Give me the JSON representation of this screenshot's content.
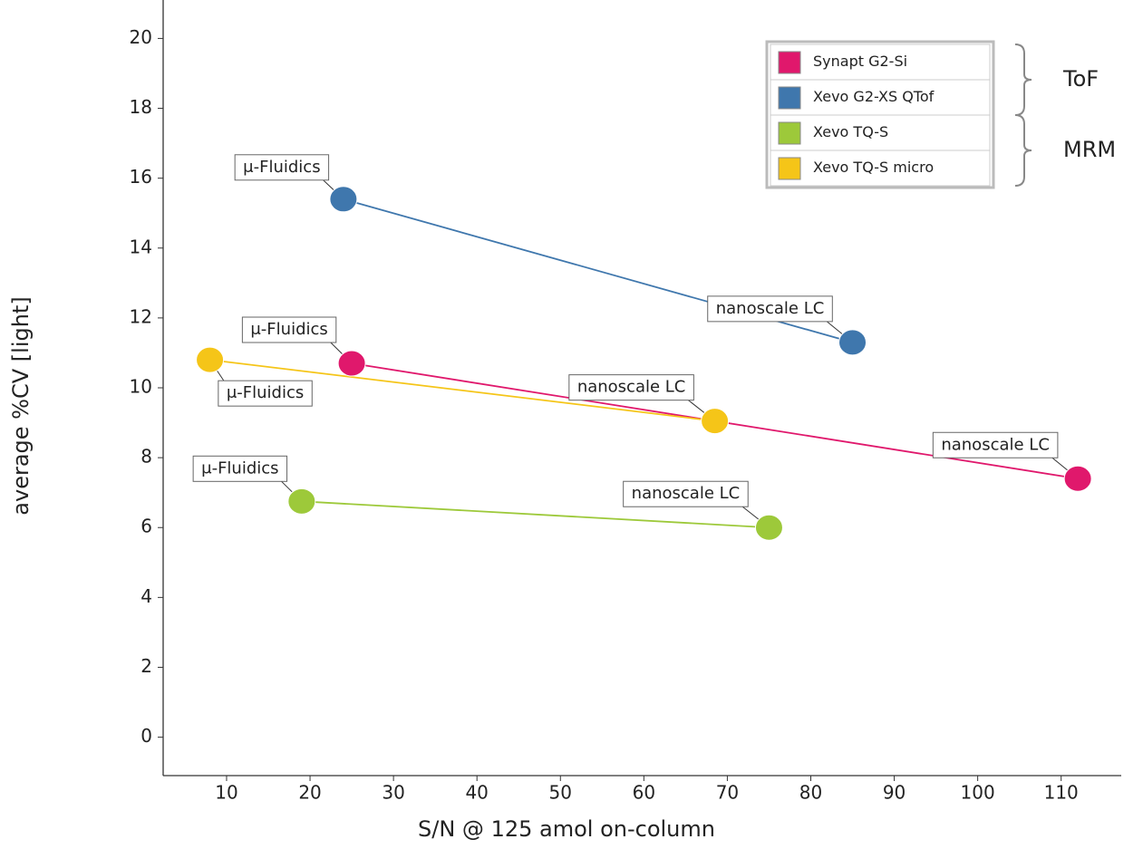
{
  "chart_data": {
    "type": "line",
    "x_label": "S/N @ 125 amol on-column",
    "y_label": "average %CV [light]",
    "xlim": [
      2.4,
      117.2
    ],
    "ylim": [
      -1.1,
      21.1
    ],
    "xticks": [
      10,
      20,
      30,
      40,
      50,
      60,
      70,
      80,
      90,
      100,
      110
    ],
    "yticks": [
      0,
      2,
      4,
      6,
      8,
      10,
      12,
      14,
      16,
      18,
      20
    ],
    "grid": false,
    "legend": "upper right",
    "legend_groups": [
      "ToF",
      "MRM"
    ],
    "series": [
      {
        "name": "Synapt G2-Si",
        "color": "#e0186c",
        "x": [
          25,
          112
        ],
        "values": [
          10.7,
          7.4
        ],
        "point_labels": [
          "μ-Fluidics",
          "nanoscale LC"
        ]
      },
      {
        "name": "Xevo G2-XS QTof",
        "color": "#3f77ad",
        "x": [
          24,
          85
        ],
        "values": [
          15.4,
          11.3
        ],
        "point_labels": [
          "μ-Fluidics",
          "nanoscale LC"
        ]
      },
      {
        "name": "Xevo TQ-S",
        "color": "#9dc93a",
        "x": [
          19,
          75
        ],
        "values": [
          6.75,
          6.0
        ],
        "point_labels": [
          "μ-Fluidics",
          "nanoscale LC"
        ]
      },
      {
        "name": "Xevo TQ-S micro",
        "color": "#f5c518",
        "x": [
          8,
          68.5
        ],
        "values": [
          10.8,
          9.05
        ],
        "point_labels": [
          "μ-Fluidics",
          "nanoscale LC"
        ]
      }
    ]
  }
}
